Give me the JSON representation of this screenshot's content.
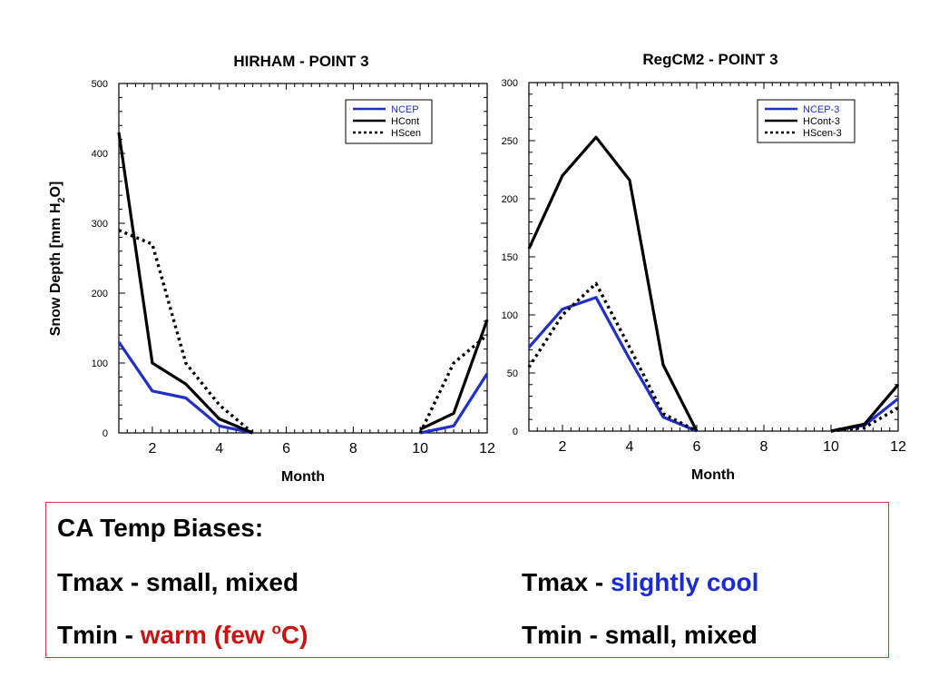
{
  "chart_data": [
    {
      "type": "line",
      "title": "HIRHAM - POINT 3",
      "xlabel": "Month",
      "ylabel": "Snow Depth [mm H",
      "ylabel_sub": "2",
      "ylabel_end": "O]",
      "xlim": [
        1,
        12
      ],
      "ylim": [
        0,
        500
      ],
      "xticks": [
        2,
        4,
        6,
        8,
        10,
        12
      ],
      "yticks": [
        0,
        100,
        200,
        300,
        400,
        500
      ],
      "legend_position": "top-right",
      "grid": false,
      "series": [
        {
          "name": "NCEP",
          "color": "#1f2fc8",
          "style": "solid",
          "points": [
            [
              1,
              130
            ],
            [
              2,
              60
            ],
            [
              3,
              50
            ],
            [
              4,
              10
            ],
            [
              5,
              0
            ],
            [
              10,
              0
            ],
            [
              11,
              10
            ],
            [
              12,
              85
            ]
          ]
        },
        {
          "name": "HCont",
          "color": "#000000",
          "style": "solid",
          "points": [
            [
              1,
              430
            ],
            [
              2,
              100
            ],
            [
              3,
              70
            ],
            [
              4,
              20
            ],
            [
              5,
              0
            ],
            [
              10,
              5
            ],
            [
              11,
              28
            ],
            [
              12,
              162
            ]
          ]
        },
        {
          "name": "HScen",
          "color": "#000000",
          "style": "dotted",
          "points": [
            [
              1,
              290
            ],
            [
              2,
              270
            ],
            [
              3,
              100
            ],
            [
              4,
              40
            ],
            [
              5,
              0
            ],
            [
              10,
              0
            ],
            [
              11,
              100
            ],
            [
              12,
              140
            ]
          ]
        }
      ]
    },
    {
      "type": "line",
      "title": "RegCM2 - POINT 3",
      "xlabel": "Month",
      "ylabel": "",
      "xlim": [
        1,
        12
      ],
      "ylim": [
        0,
        300
      ],
      "xticks": [
        2,
        4,
        6,
        8,
        10,
        12
      ],
      "yticks": [
        0,
        50,
        100,
        150,
        200,
        250,
        300
      ],
      "legend_position": "top-right",
      "grid": false,
      "series": [
        {
          "name": "NCEP-3",
          "color": "#1f2fc8",
          "style": "solid",
          "points": [
            [
              1,
              72
            ],
            [
              2,
              105
            ],
            [
              3,
              115
            ],
            [
              4,
              62
            ],
            [
              5,
              12
            ],
            [
              6,
              0
            ],
            [
              10,
              0
            ],
            [
              11,
              5
            ],
            [
              12,
              28
            ]
          ]
        },
        {
          "name": "HCont-3",
          "color": "#000000",
          "style": "solid",
          "points": [
            [
              1,
              157
            ],
            [
              2,
              220
            ],
            [
              3,
              253
            ],
            [
              4,
              216
            ],
            [
              5,
              57
            ],
            [
              6,
              0
            ],
            [
              10,
              0
            ],
            [
              11,
              6
            ],
            [
              12,
              40
            ]
          ]
        },
        {
          "name": "HScen-3",
          "color": "#000000",
          "style": "dotted",
          "points": [
            [
              1,
              55
            ],
            [
              2,
              100
            ],
            [
              3,
              127
            ],
            [
              4,
              72
            ],
            [
              5,
              15
            ],
            [
              6,
              0
            ],
            [
              10,
              0
            ],
            [
              11,
              3
            ],
            [
              12,
              20
            ]
          ]
        }
      ]
    }
  ],
  "bias_box": {
    "heading": "CA Temp Biases:",
    "hirham_tmax_label": "Tmax - small, mixed",
    "hirham_tmin_prefix": "Tmin - ",
    "hirham_tmin_value": "warm (few ",
    "hirham_tmin_sup": "o",
    "hirham_tmin_unit": "C)",
    "regcm_tmax_prefix": "Tmax - ",
    "regcm_tmax_value": "slightly cool",
    "regcm_tmin_label": "Tmin - small, mixed",
    "colors": {
      "warm": "#cc1111",
      "cool": "#1a2bd6",
      "border": "#d23a3a"
    }
  }
}
